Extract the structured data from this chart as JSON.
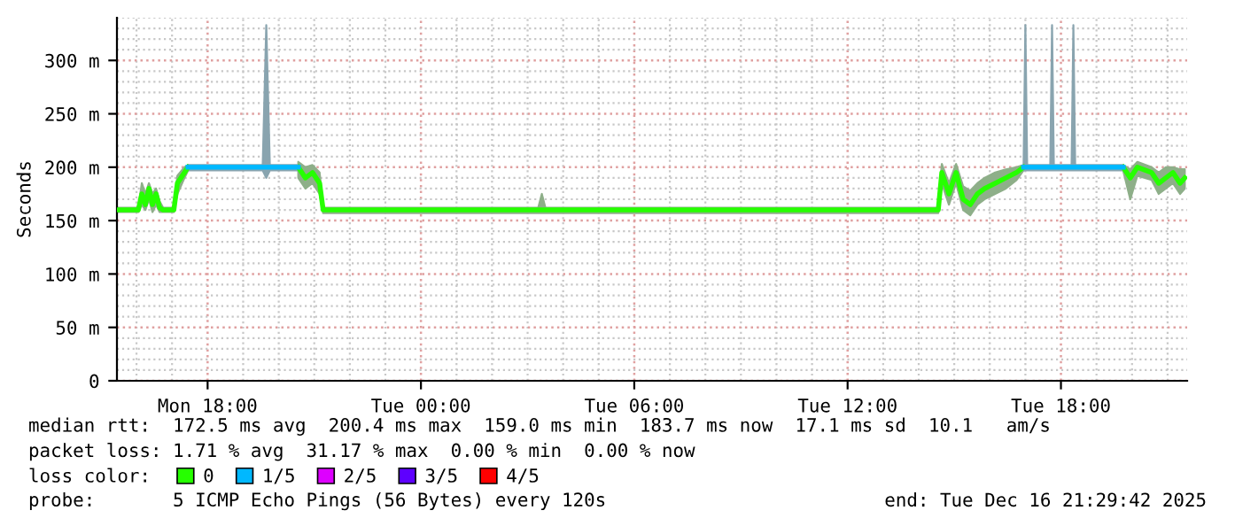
{
  "chart_data": {
    "type": "line",
    "ylabel": "Seconds",
    "legend_title": "loss color:",
    "legend": "bottom",
    "grid": true,
    "marker": "none",
    "line_style": "solid",
    "xlim": [
      "2025-12-15T15:27",
      "2025-12-16T21:33"
    ],
    "xticks": [
      {
        "value": "2025-12-15T18:00",
        "label": "Mon 18:00"
      },
      {
        "value": "2025-12-16T00:00",
        "label": "Tue 00:00"
      },
      {
        "value": "2025-12-16T06:00",
        "label": "Tue 06:00"
      },
      {
        "value": "2025-12-16T12:00",
        "label": "Tue 12:00"
      },
      {
        "value": "2025-12-16T18:00",
        "label": "Tue 18:00"
      }
    ],
    "ylim": [
      0,
      340
    ],
    "yticks": [
      0,
      {
        "value": 50,
        "label": "50 m"
      },
      {
        "value": 100,
        "label": "100 m"
      },
      {
        "value": 150,
        "label": "150 m"
      },
      {
        "value": 200,
        "label": "200 m"
      },
      {
        "value": 250,
        "label": "250 m"
      },
      {
        "value": 300,
        "label": "300 m"
      }
    ],
    "series": [
      {
        "name": "0",
        "color": "#26ff00",
        "x": [
          "2025-12-15T15:27",
          "2025-12-15T16:03",
          "2025-12-15T16:09",
          "2025-12-15T16:15",
          "2025-12-15T16:21",
          "2025-12-15T16:27",
          "2025-12-15T16:33",
          "2025-12-15T16:39",
          "2025-12-15T16:45",
          "2025-12-15T17:03",
          "2025-12-15T17:09",
          "2025-12-15T17:21",
          "2025-12-15T17:27",
          "2025-12-15T19:00",
          "2025-12-15T20:33",
          "2025-12-15T20:45",
          "2025-12-15T20:57",
          "2025-12-15T21:09",
          "2025-12-15T21:15",
          "2025-12-16T03:18",
          "2025-12-16T03:24",
          "2025-12-16T03:30",
          "2025-12-16T14:33",
          "2025-12-16T14:39",
          "2025-12-16T14:51",
          "2025-12-16T15:03",
          "2025-12-16T15:15",
          "2025-12-16T15:27",
          "2025-12-16T15:39",
          "2025-12-16T15:51",
          "2025-12-16T16:09",
          "2025-12-16T16:27",
          "2025-12-16T16:45",
          "2025-12-16T16:57",
          "2025-12-16T18:00",
          "2025-12-16T19:45",
          "2025-12-16T19:57",
          "2025-12-16T20:09",
          "2025-12-16T20:33",
          "2025-12-16T20:45",
          "2025-12-16T20:57",
          "2025-12-16T21:09",
          "2025-12-16T21:21",
          "2025-12-16T21:29"
        ],
        "values": [
          160,
          160,
          175,
          165,
          180,
          165,
          175,
          162,
          160,
          160,
          185,
          195,
          200,
          null,
          200,
          190,
          195,
          185,
          160,
          160,
          160,
          160,
          160,
          195,
          175,
          195,
          170,
          165,
          175,
          180,
          185,
          190,
          195,
          200,
          null,
          200,
          190,
          200,
          195,
          185,
          190,
          195,
          185,
          190
        ],
        "lower": [
          158,
          158,
          165,
          160,
          170,
          158,
          165,
          158,
          158,
          158,
          175,
          190,
          197,
          null,
          190,
          180,
          185,
          175,
          157,
          157,
          157,
          157,
          157,
          185,
          165,
          185,
          160,
          155,
          165,
          170,
          175,
          180,
          188,
          197,
          null,
          197,
          170,
          192,
          188,
          175,
          180,
          185,
          175,
          180
        ],
        "upper": [
          162,
          162,
          185,
          175,
          185,
          175,
          180,
          168,
          162,
          162,
          192,
          200,
          202,
          null,
          205,
          200,
          202,
          195,
          162,
          162,
          175,
          162,
          162,
          203,
          185,
          203,
          182,
          178,
          185,
          190,
          195,
          198,
          200,
          202,
          null,
          202,
          198,
          205,
          200,
          195,
          200,
          200,
          198,
          198
        ]
      },
      {
        "name": "1/5",
        "color": "#00b8ff",
        "x": [
          "2025-12-15T17:27",
          "2025-12-15T19:33",
          "2025-12-15T19:39",
          "2025-12-15T19:45",
          "2025-12-15T20:33",
          "2025-12-16T06:00",
          "2025-12-16T16:57",
          "2025-12-16T17:00",
          "2025-12-16T17:03",
          "2025-12-16T17:42",
          "2025-12-16T17:45",
          "2025-12-16T17:48",
          "2025-12-16T18:18",
          "2025-12-16T18:21",
          "2025-12-16T18:24",
          "2025-12-16T19:45"
        ],
        "values": [
          200,
          200,
          200,
          200,
          200,
          null,
          200,
          200,
          200,
          200,
          200,
          200,
          200,
          200,
          200,
          200
        ],
        "lower": [
          197,
          197,
          190,
          197,
          197,
          null,
          197,
          197,
          197,
          197,
          197,
          197,
          197,
          197,
          197,
          197
        ],
        "upper": [
          202,
          202,
          333,
          202,
          202,
          null,
          202,
          333,
          202,
          202,
          333,
          202,
          202,
          333,
          202,
          202
        ]
      },
      {
        "name": "2/5",
        "color": "#dd00ff"
      },
      {
        "name": "3/5",
        "color": "#5e00ff"
      },
      {
        "name": "4/5",
        "color": "#ff0000"
      }
    ],
    "annotations": [
      "median rtt:  172.5 ms avg  200.4 ms max  159.0 ms min  183.7 ms now  17.1 ms sd  10.1   am/s",
      "packet loss: 1.71 % avg  31.17 % max  0.00 % min  0.00 % now",
      "probe:       5 ICMP Echo Pings (56 Bytes) every 120s",
      "end: Tue Dec 16 21:29:42 2025"
    ]
  }
}
